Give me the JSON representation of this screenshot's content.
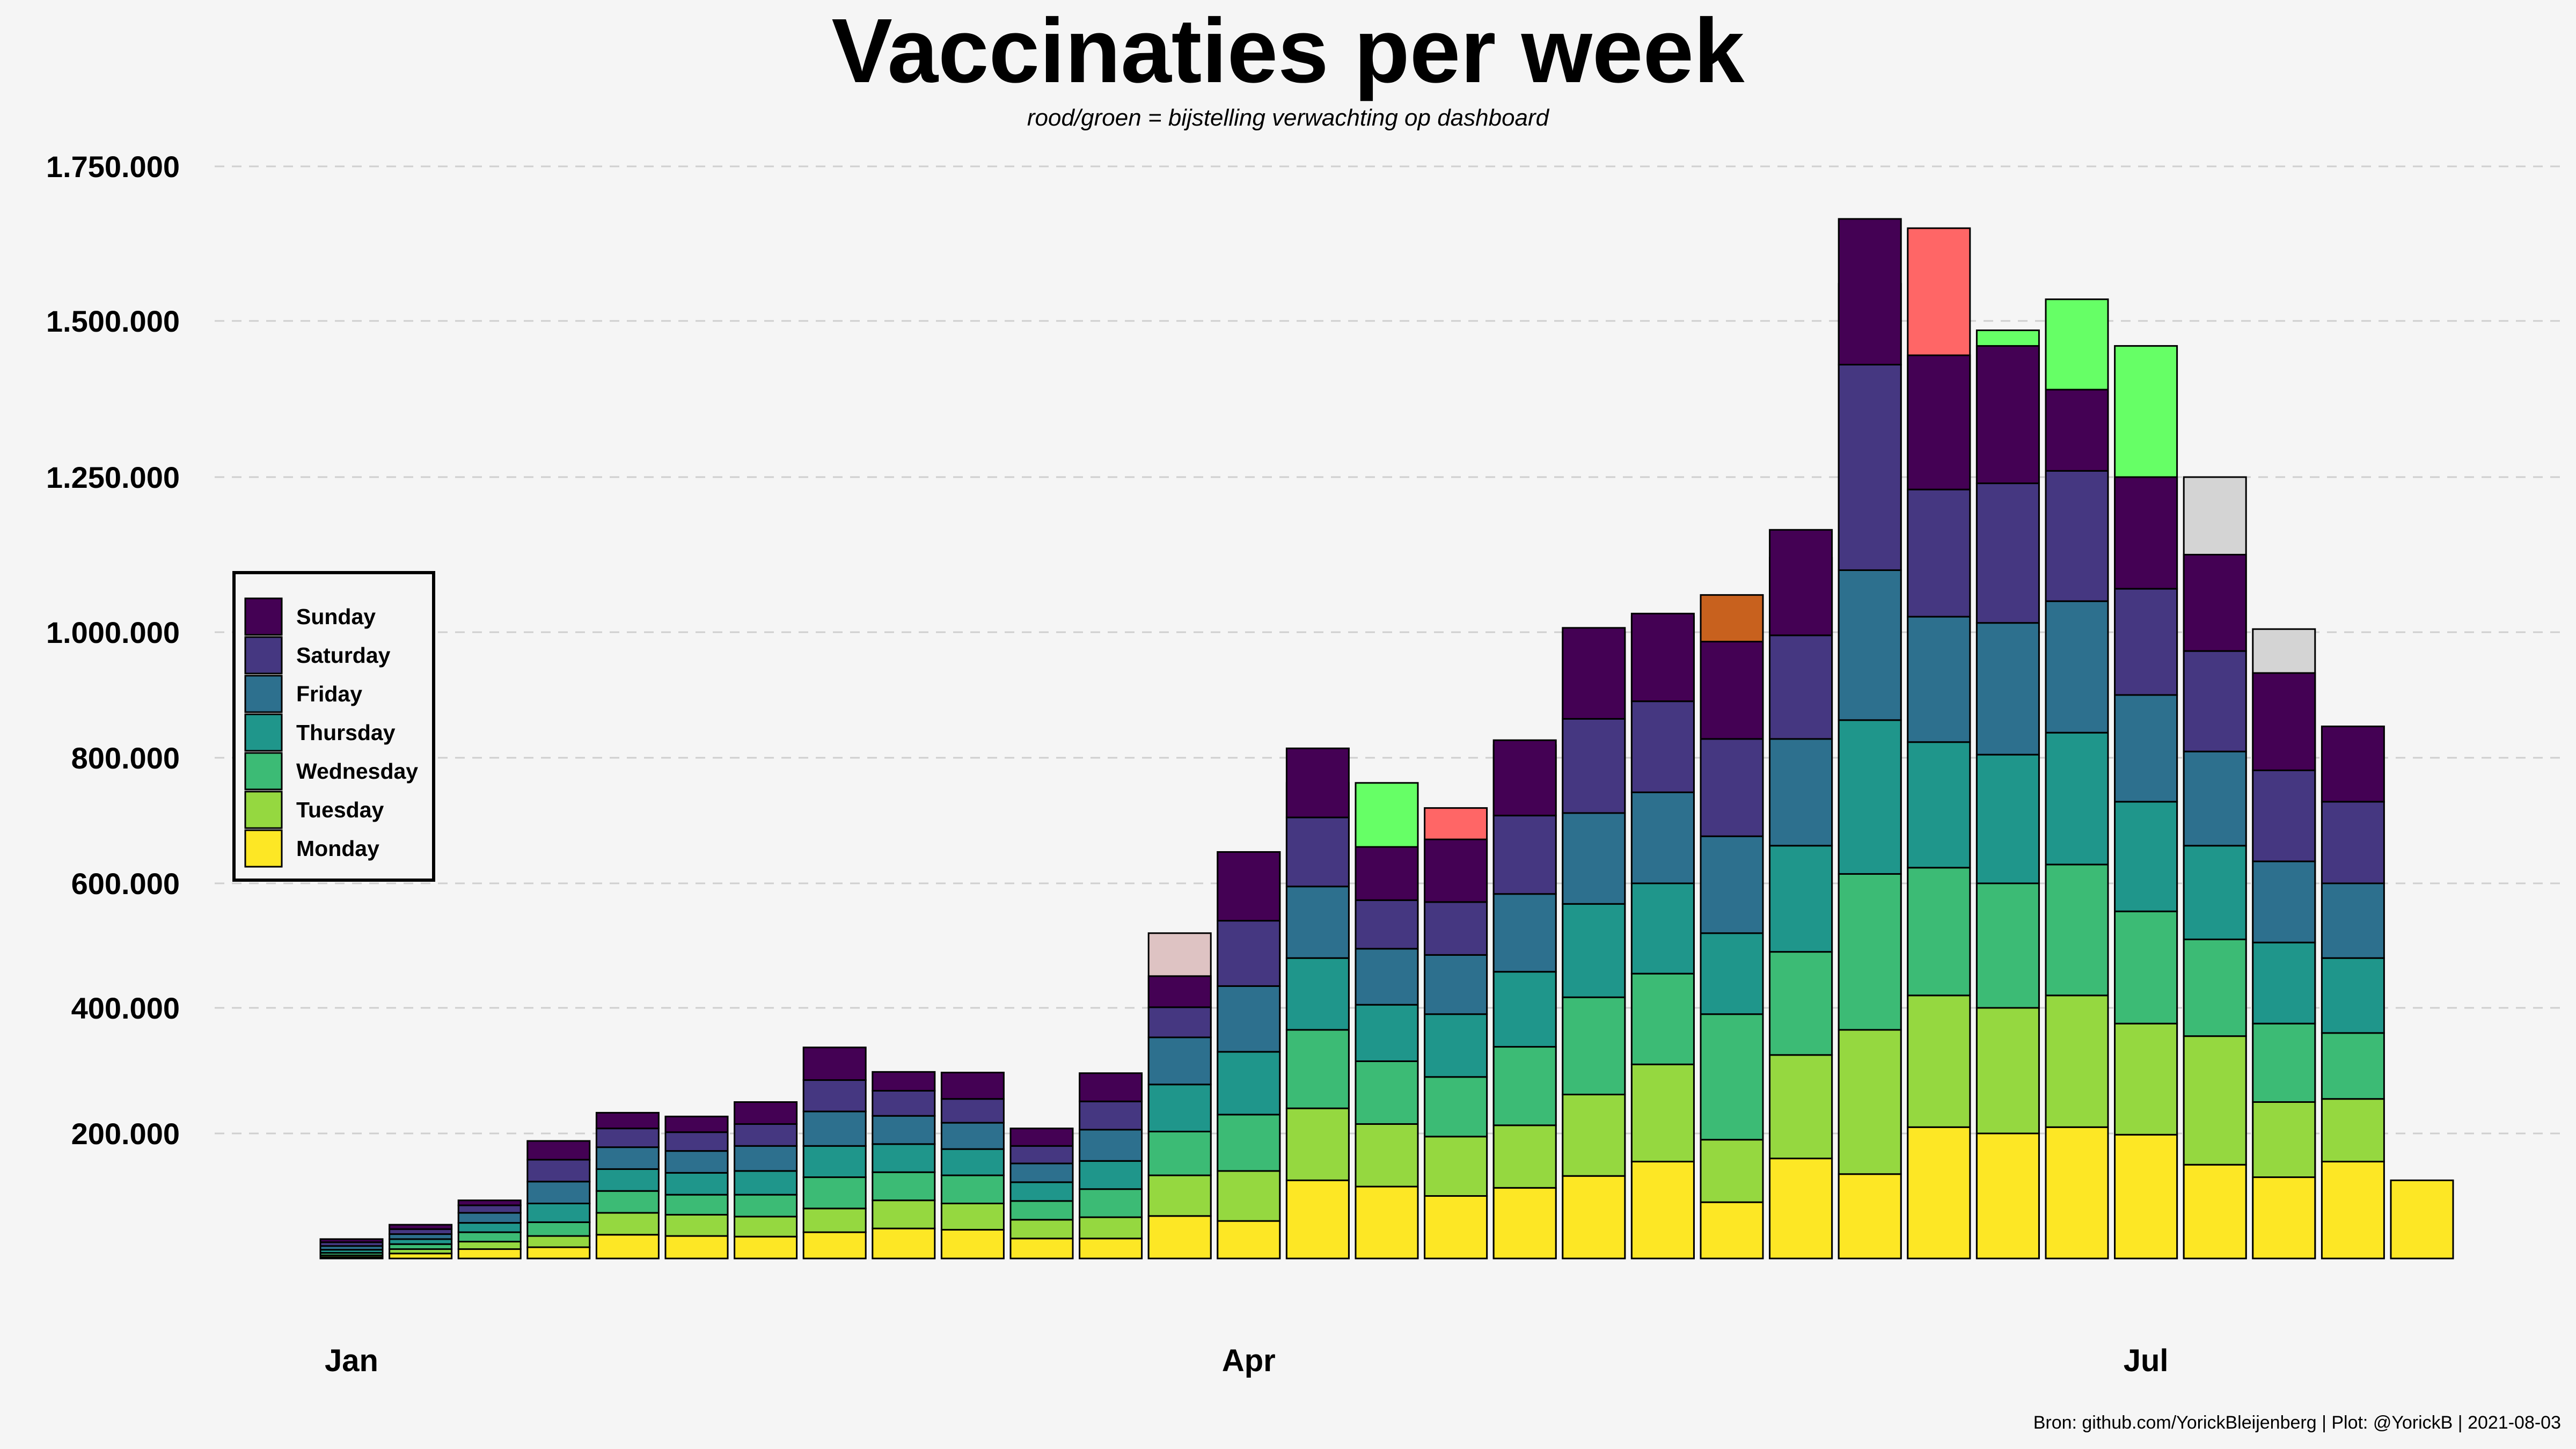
{
  "chart_data": {
    "type": "bar",
    "stacked": true,
    "title": "Vaccinaties per week",
    "subtitle": "rood/groen = bijstelling verwachting op dashboard",
    "caption": "Bron: github.com/YorickBleijenberg | Plot: @YorickB  |  2021-08-03",
    "xlabel": "",
    "ylabel": "",
    "ylim": [
      0,
      1750000
    ],
    "grid": true,
    "legend_position": "left",
    "y_tick_labels": [
      {
        "value": 200000,
        "label": "200.000"
      },
      {
        "value": 400000,
        "label": "400.000"
      },
      {
        "value": 600000,
        "label": "600.000"
      },
      {
        "value": 800000,
        "label": "800.000"
      },
      {
        "value": 1000000,
        "label": "1.000.000"
      },
      {
        "value": 1250000,
        "label": "1.250.000"
      },
      {
        "value": 1500000,
        "label": "1.500.000"
      },
      {
        "value": 1750000,
        "label": "1.750.000"
      }
    ],
    "x_tick_labels": [
      {
        "label": "Jan",
        "at_week_index": 0
      },
      {
        "label": "Apr",
        "at_week_index": 13
      },
      {
        "label": "Jul",
        "at_week_index": 26
      }
    ],
    "series": [
      {
        "name": "Monday",
        "color": "#FDE725",
        "values": [
          2000,
          8000,
          15000,
          18000,
          38000,
          36000,
          35000,
          42000,
          48000,
          46000,
          32000,
          32000,
          68000,
          60000,
          125000,
          115000,
          100000,
          113000,
          132000,
          155000,
          90000,
          160000,
          135000,
          210000,
          200000,
          210000,
          198000,
          150000,
          130000,
          155000,
          125000
        ]
      },
      {
        "name": "Tuesday",
        "color": "#95D840",
        "values": [
          3000,
          7000,
          12000,
          18000,
          35000,
          34000,
          32000,
          38000,
          45000,
          42000,
          30000,
          34000,
          65000,
          80000,
          115000,
          100000,
          95000,
          100000,
          130000,
          155000,
          100000,
          165000,
          230000,
          210000,
          200000,
          210000,
          177000,
          205000,
          120000,
          100000,
          0
        ]
      },
      {
        "name": "Wednesday",
        "color": "#3CBB75",
        "values": [
          4000,
          8000,
          15000,
          22000,
          35000,
          32000,
          35000,
          50000,
          45000,
          45000,
          30000,
          45000,
          70000,
          90000,
          125000,
          100000,
          95000,
          125000,
          155000,
          145000,
          200000,
          165000,
          250000,
          205000,
          200000,
          210000,
          180000,
          155000,
          125000,
          105000,
          0
        ]
      },
      {
        "name": "Thursday",
        "color": "#1F968B",
        "values": [
          5000,
          8000,
          15000,
          30000,
          35000,
          35000,
          38000,
          50000,
          45000,
          42000,
          30000,
          45000,
          75000,
          100000,
          115000,
          90000,
          100000,
          120000,
          150000,
          145000,
          130000,
          170000,
          245000,
          200000,
          205000,
          210000,
          175000,
          150000,
          130000,
          120000,
          0
        ]
      },
      {
        "name": "Friday",
        "color": "#2D708E",
        "values": [
          6000,
          8000,
          16000,
          35000,
          35000,
          35000,
          40000,
          55000,
          45000,
          42000,
          30000,
          50000,
          75000,
          105000,
          115000,
          90000,
          95000,
          125000,
          145000,
          145000,
          155000,
          170000,
          240000,
          200000,
          210000,
          210000,
          170000,
          150000,
          130000,
          120000,
          0
        ]
      },
      {
        "name": "Saturday",
        "color": "#453781",
        "values": [
          6000,
          8000,
          12000,
          35000,
          30000,
          30000,
          35000,
          50000,
          40000,
          38000,
          28000,
          45000,
          48000,
          105000,
          110000,
          78000,
          85000,
          125000,
          150000,
          145000,
          155000,
          165000,
          330000,
          205000,
          225000,
          210000,
          170000,
          160000,
          145000,
          130000,
          0
        ]
      },
      {
        "name": "Sunday",
        "color": "#440154",
        "values": [
          5000,
          7000,
          8000,
          30000,
          25000,
          25000,
          35000,
          52000,
          30000,
          42000,
          28000,
          45000,
          50000,
          110000,
          110000,
          85000,
          100000,
          120000,
          145000,
          140000,
          155000,
          170000,
          235000,
          215000,
          220000,
          130000,
          180000,
          155000,
          155000,
          120000,
          0
        ]
      }
    ],
    "adjustments": [
      {
        "week_index": 12,
        "value": 520000,
        "color": "#DEC3C3"
      },
      {
        "week_index": 13,
        "value": 650000,
        "color": "#66FF66"
      },
      {
        "week_index": 14,
        "value": 760000,
        "color": "#66FF66"
      },
      {
        "week_index": 15,
        "value": 760000,
        "color": "#66FF66"
      },
      {
        "week_index": 16,
        "value": 720000,
        "color": "#FF6666"
      },
      {
        "week_index": 17,
        "value": 820000,
        "color": "#FF6666"
      },
      {
        "week_index": 18,
        "value": 1000000,
        "color": "#FF6666"
      },
      {
        "week_index": 19,
        "value": 1025000,
        "color": "#FF6666"
      },
      {
        "week_index": 20,
        "value": 1060000,
        "color": "#C8611E"
      },
      {
        "week_index": 21,
        "value": 1120000,
        "color": "#66FF66"
      },
      {
        "week_index": 22,
        "value": 1560000,
        "color": "#66FF66"
      },
      {
        "week_index": 23,
        "value": 1650000,
        "color": "#FF6666"
      },
      {
        "week_index": 24,
        "value": 1485000,
        "color": "#66FF66"
      },
      {
        "week_index": 25,
        "value": 1535000,
        "color": "#66FF66"
      },
      {
        "week_index": 26,
        "value": 1460000,
        "color": "#66FF66"
      },
      {
        "week_index": 27,
        "value": 1250000,
        "color": "#D4D4D4"
      },
      {
        "week_index": 28,
        "value": 1005000,
        "color": "#D4D4D4"
      }
    ]
  }
}
